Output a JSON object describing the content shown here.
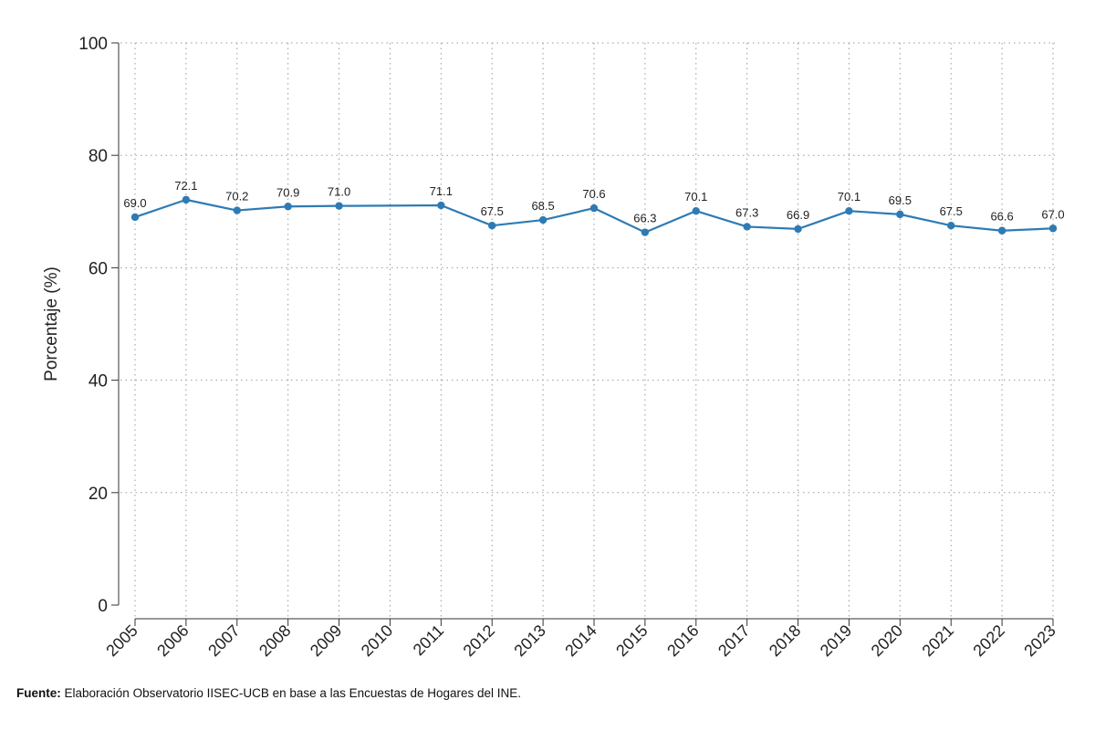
{
  "chart_data": {
    "type": "line",
    "ylabel": "Porcentaje (%)",
    "xlabel": "",
    "title": "",
    "ylim": [
      0,
      100
    ],
    "yticks": [
      0,
      20,
      40,
      60,
      80,
      100
    ],
    "x_axis_years": [
      "2005",
      "2006",
      "2007",
      "2008",
      "2009",
      "2010",
      "2011",
      "2012",
      "2013",
      "2014",
      "2015",
      "2016",
      "2017",
      "2018",
      "2019",
      "2020",
      "2021",
      "2022",
      "2023"
    ],
    "series": [
      {
        "color": "#2e7bb4",
        "points": [
          {
            "x": 2005,
            "y": 69.0,
            "label": "69.0"
          },
          {
            "x": 2006,
            "y": 72.1,
            "label": "72.1"
          },
          {
            "x": 2007,
            "y": 70.2,
            "label": "70.2"
          },
          {
            "x": 2008,
            "y": 70.9,
            "label": "70.9"
          },
          {
            "x": 2009,
            "y": 71.0,
            "label": "71.0"
          },
          {
            "x": 2011,
            "y": 71.1,
            "label": "71.1"
          },
          {
            "x": 2012,
            "y": 67.5,
            "label": "67.5"
          },
          {
            "x": 2013,
            "y": 68.5,
            "label": "68.5"
          },
          {
            "x": 2014,
            "y": 70.6,
            "label": "70.6"
          },
          {
            "x": 2015,
            "y": 66.3,
            "label": "66.3"
          },
          {
            "x": 2016,
            "y": 70.1,
            "label": "70.1"
          },
          {
            "x": 2017,
            "y": 67.3,
            "label": "67.3"
          },
          {
            "x": 2018,
            "y": 66.9,
            "label": "66.9"
          },
          {
            "x": 2019,
            "y": 70.1,
            "label": "70.1"
          },
          {
            "x": 2020,
            "y": 69.5,
            "label": "69.5"
          },
          {
            "x": 2021,
            "y": 67.5,
            "label": "67.5"
          },
          {
            "x": 2022,
            "y": 66.6,
            "label": "66.6"
          },
          {
            "x": 2023,
            "y": 67.0,
            "label": "67.0"
          }
        ]
      }
    ],
    "grid": true
  },
  "source": {
    "label": "Fuente:",
    "text": "Elaboración Observatorio IISEC-UCB en base a las Encuestas de Hogares del INE."
  }
}
